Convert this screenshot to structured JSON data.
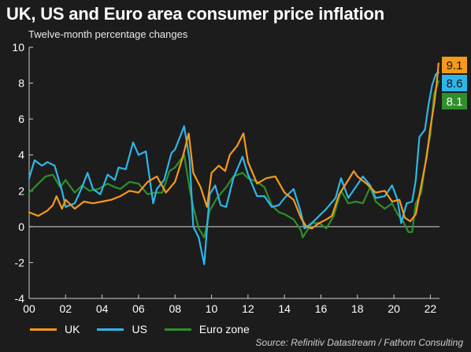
{
  "title": "UK, US and Euro area consumer price inflation",
  "subtitle": "Twelve-month percentage changes",
  "source": "Source: Refinitiv Datastream / Fathom Consulting",
  "colors": {
    "background": "#1c1c1c",
    "uk": "#f59a1a",
    "us": "#2eb6e8",
    "euro": "#2f8f2a",
    "zero_line": "#d9d9d9",
    "axis": "#cfcfcf"
  },
  "chart_data": {
    "type": "line",
    "xlabel": "",
    "ylabel": "",
    "xlim": [
      2000,
      2022.5
    ],
    "ylim": [
      -4,
      10
    ],
    "grid": false,
    "legend": "bottom",
    "y_ticks": [
      -4,
      -2,
      0,
      2,
      4,
      6,
      8,
      10
    ],
    "x_ticks": [
      2000,
      2002,
      2004,
      2006,
      2008,
      2010,
      2012,
      2014,
      2016,
      2018,
      2020,
      2022
    ],
    "x_tick_labels": [
      "00",
      "02",
      "04",
      "06",
      "08",
      "10",
      "12",
      "14",
      "16",
      "18",
      "20",
      "22"
    ],
    "series": [
      {
        "name": "UK",
        "color": "#f59a1a",
        "end_label": "9.1",
        "points": [
          [
            2000.0,
            0.8
          ],
          [
            2000.5,
            0.6
          ],
          [
            2001.0,
            0.9
          ],
          [
            2001.3,
            1.2
          ],
          [
            2001.5,
            1.7
          ],
          [
            2001.8,
            1.0
          ],
          [
            2002.0,
            1.5
          ],
          [
            2002.5,
            1.0
          ],
          [
            2003.0,
            1.4
          ],
          [
            2003.5,
            1.3
          ],
          [
            2004.0,
            1.4
          ],
          [
            2004.5,
            1.5
          ],
          [
            2005.0,
            1.7
          ],
          [
            2005.5,
            2.0
          ],
          [
            2006.0,
            1.9
          ],
          [
            2006.5,
            2.5
          ],
          [
            2007.0,
            2.8
          ],
          [
            2007.5,
            1.9
          ],
          [
            2008.0,
            2.5
          ],
          [
            2008.4,
            3.8
          ],
          [
            2008.75,
            5.2
          ],
          [
            2009.0,
            3.0
          ],
          [
            2009.4,
            2.2
          ],
          [
            2009.75,
            1.1
          ],
          [
            2010.0,
            3.0
          ],
          [
            2010.4,
            3.4
          ],
          [
            2010.75,
            3.1
          ],
          [
            2011.0,
            4.0
          ],
          [
            2011.4,
            4.5
          ],
          [
            2011.75,
            5.2
          ],
          [
            2012.0,
            3.6
          ],
          [
            2012.5,
            2.4
          ],
          [
            2013.0,
            2.7
          ],
          [
            2013.5,
            2.8
          ],
          [
            2014.0,
            1.9
          ],
          [
            2014.5,
            1.5
          ],
          [
            2014.9,
            0.5
          ],
          [
            2015.2,
            0.0
          ],
          [
            2015.5,
            -0.1
          ],
          [
            2015.9,
            0.2
          ],
          [
            2016.3,
            0.4
          ],
          [
            2016.6,
            0.6
          ],
          [
            2017.0,
            1.8
          ],
          [
            2017.5,
            2.6
          ],
          [
            2017.8,
            3.1
          ],
          [
            2018.0,
            2.8
          ],
          [
            2018.5,
            2.4
          ],
          [
            2019.0,
            1.9
          ],
          [
            2019.5,
            2.0
          ],
          [
            2019.9,
            1.4
          ],
          [
            2020.3,
            1.5
          ],
          [
            2020.6,
            0.5
          ],
          [
            2020.9,
            0.3
          ],
          [
            2021.2,
            0.7
          ],
          [
            2021.5,
            2.3
          ],
          [
            2021.8,
            3.9
          ],
          [
            2022.0,
            5.5
          ],
          [
            2022.2,
            6.8
          ],
          [
            2022.35,
            8.0
          ],
          [
            2022.45,
            9.1
          ]
        ]
      },
      {
        "name": "US",
        "color": "#2eb6e8",
        "end_label": "8.6",
        "points": [
          [
            2000.0,
            2.7
          ],
          [
            2000.3,
            3.7
          ],
          [
            2000.7,
            3.4
          ],
          [
            2001.0,
            3.6
          ],
          [
            2001.4,
            3.4
          ],
          [
            2001.8,
            2.0
          ],
          [
            2002.0,
            1.1
          ],
          [
            2002.5,
            1.3
          ],
          [
            2002.9,
            2.2
          ],
          [
            2003.2,
            3.0
          ],
          [
            2003.5,
            2.1
          ],
          [
            2003.9,
            1.8
          ],
          [
            2004.3,
            2.9
          ],
          [
            2004.7,
            2.6
          ],
          [
            2004.9,
            3.3
          ],
          [
            2005.3,
            3.2
          ],
          [
            2005.7,
            4.7
          ],
          [
            2006.0,
            4.0
          ],
          [
            2006.4,
            4.2
          ],
          [
            2006.8,
            1.3
          ],
          [
            2007.0,
            2.1
          ],
          [
            2007.4,
            2.6
          ],
          [
            2007.8,
            4.1
          ],
          [
            2008.0,
            4.3
          ],
          [
            2008.5,
            5.6
          ],
          [
            2008.8,
            3.7
          ],
          [
            2009.0,
            0.0
          ],
          [
            2009.3,
            -0.6
          ],
          [
            2009.6,
            -2.1
          ],
          [
            2009.9,
            1.8
          ],
          [
            2010.2,
            2.3
          ],
          [
            2010.5,
            1.2
          ],
          [
            2010.8,
            1.1
          ],
          [
            2011.2,
            2.7
          ],
          [
            2011.7,
            3.9
          ],
          [
            2012.0,
            2.9
          ],
          [
            2012.5,
            1.7
          ],
          [
            2012.9,
            1.7
          ],
          [
            2013.3,
            1.1
          ],
          [
            2013.7,
            1.2
          ],
          [
            2014.0,
            1.6
          ],
          [
            2014.5,
            2.1
          ],
          [
            2014.9,
            0.8
          ],
          [
            2015.1,
            -0.1
          ],
          [
            2015.5,
            0.2
          ],
          [
            2015.9,
            0.6
          ],
          [
            2016.3,
            1.0
          ],
          [
            2016.8,
            1.6
          ],
          [
            2017.1,
            2.7
          ],
          [
            2017.5,
            1.6
          ],
          [
            2017.9,
            2.2
          ],
          [
            2018.3,
            2.8
          ],
          [
            2018.7,
            2.3
          ],
          [
            2019.0,
            1.6
          ],
          [
            2019.5,
            1.7
          ],
          [
            2019.9,
            2.3
          ],
          [
            2020.2,
            1.5
          ],
          [
            2020.4,
            0.2
          ],
          [
            2020.7,
            1.3
          ],
          [
            2021.0,
            1.4
          ],
          [
            2021.2,
            2.6
          ],
          [
            2021.4,
            5.0
          ],
          [
            2021.7,
            5.4
          ],
          [
            2021.9,
            6.8
          ],
          [
            2022.1,
            7.9
          ],
          [
            2022.3,
            8.5
          ],
          [
            2022.45,
            8.6
          ]
        ]
      },
      {
        "name": "Euro zone",
        "color": "#2f8f2a",
        "end_label": "8.1",
        "points": [
          [
            2000.0,
            1.9
          ],
          [
            2000.5,
            2.4
          ],
          [
            2000.9,
            2.8
          ],
          [
            2001.3,
            2.9
          ],
          [
            2001.7,
            2.2
          ],
          [
            2002.0,
            2.6
          ],
          [
            2002.5,
            1.9
          ],
          [
            2002.9,
            2.3
          ],
          [
            2003.3,
            2.0
          ],
          [
            2003.8,
            2.1
          ],
          [
            2004.3,
            2.4
          ],
          [
            2004.7,
            2.2
          ],
          [
            2005.0,
            2.1
          ],
          [
            2005.5,
            2.5
          ],
          [
            2006.0,
            2.4
          ],
          [
            2006.5,
            1.8
          ],
          [
            2006.9,
            1.9
          ],
          [
            2007.3,
            1.9
          ],
          [
            2007.7,
            3.1
          ],
          [
            2008.0,
            3.3
          ],
          [
            2008.5,
            4.0
          ],
          [
            2008.8,
            2.1
          ],
          [
            2009.0,
            1.1
          ],
          [
            2009.3,
            -0.1
          ],
          [
            2009.6,
            -0.6
          ],
          [
            2009.9,
            0.9
          ],
          [
            2010.3,
            1.6
          ],
          [
            2010.8,
            2.2
          ],
          [
            2011.2,
            2.8
          ],
          [
            2011.7,
            3.0
          ],
          [
            2012.0,
            2.7
          ],
          [
            2012.5,
            2.5
          ],
          [
            2012.9,
            2.2
          ],
          [
            2013.3,
            1.2
          ],
          [
            2013.7,
            0.8
          ],
          [
            2014.0,
            0.7
          ],
          [
            2014.5,
            0.4
          ],
          [
            2014.9,
            -0.2
          ],
          [
            2015.0,
            -0.6
          ],
          [
            2015.5,
            0.2
          ],
          [
            2015.9,
            0.2
          ],
          [
            2016.3,
            -0.1
          ],
          [
            2016.7,
            0.6
          ],
          [
            2017.1,
            2.0
          ],
          [
            2017.5,
            1.3
          ],
          [
            2017.9,
            1.4
          ],
          [
            2018.3,
            1.3
          ],
          [
            2018.7,
            2.2
          ],
          [
            2019.0,
            1.4
          ],
          [
            2019.5,
            1.0
          ],
          [
            2019.9,
            1.3
          ],
          [
            2020.2,
            0.7
          ],
          [
            2020.5,
            0.3
          ],
          [
            2020.8,
            -0.3
          ],
          [
            2021.0,
            -0.3
          ],
          [
            2021.2,
            1.3
          ],
          [
            2021.5,
            1.9
          ],
          [
            2021.8,
            4.1
          ],
          [
            2022.0,
            5.1
          ],
          [
            2022.2,
            7.4
          ],
          [
            2022.45,
            8.1
          ]
        ]
      }
    ]
  }
}
